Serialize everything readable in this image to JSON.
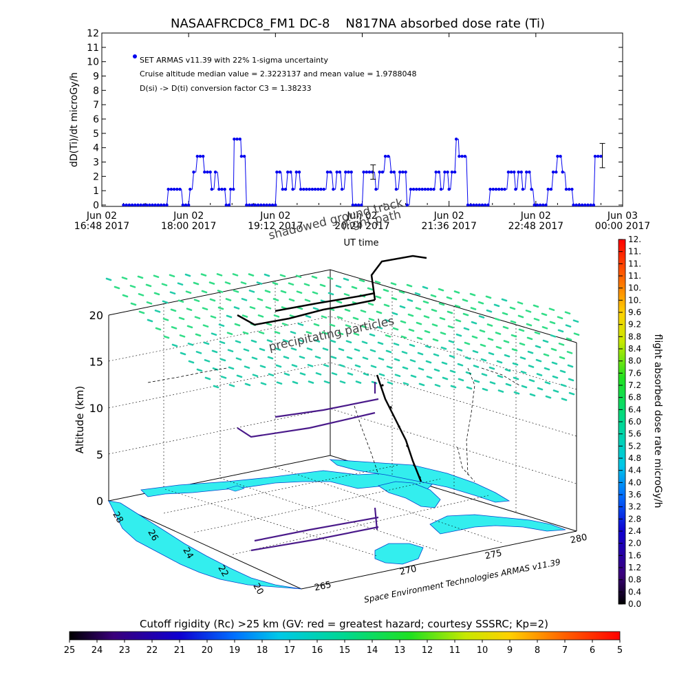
{
  "chart_data": [
    {
      "type": "line",
      "title": "NASAAFRCDC8_FM1 DC-8    N817NA absorbed dose rate (Ti)",
      "xlabel": "UT time",
      "ylabel": "dD(Ti)/dt microGy/h",
      "ylim": [
        0,
        12
      ],
      "yticks": [
        "0",
        "1",
        "2",
        "3",
        "4",
        "5",
        "6",
        "7",
        "8",
        "9",
        "10",
        "11",
        "12"
      ],
      "xticks": [
        {
          "line1": "Jun 02",
          "line2": "16:48 2017"
        },
        {
          "line1": "Jun 02",
          "line2": "18:00 2017"
        },
        {
          "line1": "Jun 02",
          "line2": "19:12 2017"
        },
        {
          "line1": "Jun 02",
          "line2": "20:24 2017"
        },
        {
          "line1": "Jun 02",
          "line2": "21:36 2017"
        },
        {
          "line1": "Jun 02",
          "line2": "22:48 2017"
        },
        {
          "line1": "Jun 03",
          "line2": "00:00 2017"
        }
      ],
      "xrange_hours": [
        16.8,
        24.0
      ],
      "legend": [
        "SET ARMAS v11.39 with 22% 1-sigma uncertainty",
        "Cruise altitude median value = 2.3223137 and mean value = 1.9788048",
        "D(si) -> D(ti) conversion factor C3 = 1.38233"
      ],
      "series_color": "#0000ee",
      "series": [
        {
          "segments": [
            [
              [
                17.1,
                0
              ],
              [
                17.7,
                0
              ],
              [
                17.72,
                1.1
              ],
              [
                17.9,
                1.1
              ],
              [
                17.92,
                0
              ],
              [
                18.0,
                0
              ],
              [
                18.02,
                1.1
              ],
              [
                18.05,
                1.1
              ],
              [
                18.07,
                2.3
              ],
              [
                18.1,
                2.3
              ],
              [
                18.12,
                3.4
              ],
              [
                18.2,
                3.4
              ],
              [
                18.22,
                2.3
              ],
              [
                18.3,
                2.3
              ],
              [
                18.32,
                1.1
              ],
              [
                18.35,
                1.1
              ],
              [
                18.37,
                2.3
              ],
              [
                18.4,
                2.3
              ],
              [
                18.42,
                1.1
              ],
              [
                18.5,
                1.1
              ],
              [
                18.52,
                0
              ],
              [
                18.57,
                0
              ],
              [
                18.58,
                1.1
              ],
              [
                18.62,
                1.1
              ],
              [
                18.63,
                4.6
              ],
              [
                18.72,
                4.6
              ],
              [
                18.73,
                3.4
              ],
              [
                18.78,
                3.4
              ],
              [
                18.8,
                0
              ],
              [
                19.2,
                0
              ],
              [
                19.22,
                2.3
              ],
              [
                19.28,
                2.3
              ],
              [
                19.3,
                1.1
              ],
              [
                19.35,
                1.1
              ],
              [
                19.37,
                2.3
              ],
              [
                19.42,
                2.3
              ],
              [
                19.44,
                1.1
              ],
              [
                19.47,
                1.1
              ],
              [
                19.49,
                2.3
              ],
              [
                19.53,
                2.3
              ],
              [
                19.55,
                1.1
              ],
              [
                19.9,
                1.1
              ],
              [
                19.92,
                2.3
              ],
              [
                19.98,
                2.3
              ],
              [
                20.0,
                1.1
              ],
              [
                20.03,
                1.1
              ],
              [
                20.05,
                2.3
              ],
              [
                20.1,
                2.3
              ],
              [
                20.12,
                1.1
              ],
              [
                20.15,
                1.1
              ],
              [
                20.17,
                2.3
              ],
              [
                20.25,
                2.3
              ],
              [
                20.27,
                0
              ],
              [
                20.4,
                0
              ],
              [
                20.42,
                2.3
              ],
              [
                20.57,
                2.3
              ],
              [
                20.59,
                1.1
              ],
              [
                20.62,
                1.1
              ],
              [
                20.64,
                2.3
              ],
              [
                20.7,
                2.3
              ],
              [
                20.72,
                3.4
              ],
              [
                20.78,
                3.4
              ],
              [
                20.8,
                2.3
              ],
              [
                20.85,
                2.3
              ],
              [
                20.87,
                1.1
              ],
              [
                20.9,
                1.1
              ],
              [
                20.92,
                2.3
              ],
              [
                21.0,
                2.3
              ],
              [
                21.02,
                0
              ],
              [
                21.05,
                0
              ],
              [
                21.07,
                1.1
              ],
              [
                21.4,
                1.1
              ],
              [
                21.42,
                2.3
              ],
              [
                21.47,
                2.3
              ],
              [
                21.49,
                1.1
              ],
              [
                21.52,
                1.1
              ],
              [
                21.54,
                2.3
              ],
              [
                21.58,
                2.3
              ],
              [
                21.6,
                1.1
              ],
              [
                21.62,
                1.1
              ],
              [
                21.64,
                2.3
              ],
              [
                21.68,
                2.3
              ],
              [
                21.7,
                4.6
              ],
              [
                21.73,
                4.6
              ],
              [
                21.74,
                3.4
              ],
              [
                21.84,
                3.4
              ],
              [
                21.86,
                0
              ],
              [
                22.15,
                0
              ],
              [
                22.17,
                1.1
              ],
              [
                22.4,
                1.1
              ],
              [
                22.42,
                2.3
              ],
              [
                22.5,
                2.3
              ],
              [
                22.52,
                1.1
              ],
              [
                22.54,
                1.1
              ],
              [
                22.56,
                2.3
              ],
              [
                22.6,
                2.3
              ],
              [
                22.62,
                1.1
              ],
              [
                22.65,
                1.1
              ],
              [
                22.67,
                2.3
              ],
              [
                22.72,
                2.3
              ],
              [
                22.74,
                1.1
              ],
              [
                22.76,
                1.1
              ],
              [
                22.78,
                0
              ],
              [
                22.95,
                0
              ],
              [
                22.97,
                1.1
              ],
              [
                23.02,
                1.1
              ],
              [
                23.04,
                2.3
              ],
              [
                23.08,
                2.3
              ],
              [
                23.1,
                3.4
              ],
              [
                23.15,
                3.4
              ],
              [
                23.17,
                2.3
              ],
              [
                23.2,
                2.3
              ],
              [
                23.22,
                1.1
              ],
              [
                23.3,
                1.1
              ],
              [
                23.32,
                0
              ],
              [
                23.6,
                0
              ],
              [
                23.62,
                3.4
              ],
              [
                23.7,
                3.4
              ]
            ]
          ]
        }
      ],
      "error_bars": [
        {
          "x": 20.55,
          "y": 2.3,
          "lo": 1.8,
          "hi": 2.8
        },
        {
          "x": 23.72,
          "y": 3.4,
          "lo": 2.6,
          "hi": 4.3
        }
      ]
    },
    {
      "type": "scatter",
      "title": "",
      "zlabel": "Altitude (km)",
      "zticks": [
        "0",
        "5",
        "10",
        "15",
        "20"
      ],
      "lat_ticks": [
        "20",
        "22",
        "24",
        "26",
        "28"
      ],
      "lon_ticks": [
        "265",
        "270",
        "275",
        "280"
      ],
      "annotations": {
        "shadow": "shadowed ground track",
        "flight": "flight path",
        "precip": "precipitating particles",
        "credit": "Space Environment Technologies ARMAS v11.39"
      },
      "colorbar_right": {
        "label": "flight absorbed dose rate microGy/h",
        "ticks": [
          "0.0",
          "0.4",
          "0.8",
          "1.2",
          "1.6",
          "2.0",
          "2.4",
          "2.8",
          "3.2",
          "3.6",
          "4.0",
          "4.4",
          "4.8",
          "5.2",
          "5.6",
          "6.0",
          "6.4",
          "6.8",
          "7.2",
          "7.6",
          "8.0",
          "8.4",
          "8.8",
          "9.2",
          "9.6",
          "10.",
          "10.",
          "11.",
          "11.",
          "11.",
          "12."
        ]
      },
      "colorbar_bottom": {
        "label": "Cutoff rigidity (Rc) >25 km (GV: red = greatest hazard; courtesy SSSRC; Kp=2)",
        "ticks": [
          "25",
          "24",
          "23",
          "22",
          "21",
          "20",
          "19",
          "18",
          "17",
          "16",
          "15",
          "14",
          "13",
          "12",
          "11",
          "10",
          "9",
          "8",
          "7",
          "6",
          "5"
        ]
      },
      "colors": {
        "land": "#33eeee",
        "coast": "#0044cc",
        "particles_a": "#33dd88",
        "particles_b": "#22ccaa",
        "track": "#000000",
        "track_purple": "#4a1a8a"
      }
    }
  ]
}
